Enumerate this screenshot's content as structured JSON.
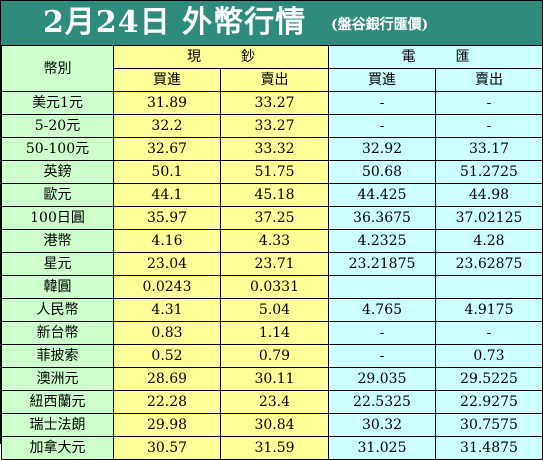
{
  "header": {
    "title": "2月24日 外幣行情",
    "bank": "(盤谷銀行匯價)"
  },
  "table": {
    "currency_label": "幣別",
    "cash_label": "現鈔",
    "wire_label": "電匯",
    "buy_label": "買進",
    "sell_label": "賣出",
    "rows": [
      {
        "currency": "美元1元",
        "cash_buy": "31.89",
        "cash_sell": "33.27",
        "wire_buy": "-",
        "wire_sell": "-"
      },
      {
        "currency": "5-20元",
        "cash_buy": "32.2",
        "cash_sell": "33.27",
        "wire_buy": "-",
        "wire_sell": "-"
      },
      {
        "currency": "50-100元",
        "cash_buy": "32.67",
        "cash_sell": "33.32",
        "wire_buy": "32.92",
        "wire_sell": "33.17"
      },
      {
        "currency": "英鎊",
        "cash_buy": "50.1",
        "cash_sell": "51.75",
        "wire_buy": "50.68",
        "wire_sell": "51.2725"
      },
      {
        "currency": "歐元",
        "cash_buy": "44.1",
        "cash_sell": "45.18",
        "wire_buy": "44.425",
        "wire_sell": "44.98"
      },
      {
        "currency": "100日圓",
        "cash_buy": "35.97",
        "cash_sell": "37.25",
        "wire_buy": "36.3675",
        "wire_sell": "37.02125"
      },
      {
        "currency": "港幣",
        "cash_buy": "4.16",
        "cash_sell": "4.33",
        "wire_buy": "4.2325",
        "wire_sell": "4.28"
      },
      {
        "currency": "星元",
        "cash_buy": "23.04",
        "cash_sell": "23.71",
        "wire_buy": "23.21875",
        "wire_sell": "23.62875"
      },
      {
        "currency": "韓圓",
        "cash_buy": "0.0243",
        "cash_sell": "0.0331",
        "wire_buy": "",
        "wire_sell": ""
      },
      {
        "currency": "人民幣",
        "cash_buy": "4.31",
        "cash_sell": "5.04",
        "wire_buy": "4.765",
        "wire_sell": "4.9175"
      },
      {
        "currency": "新台幣",
        "cash_buy": "0.83",
        "cash_sell": "1.14",
        "wire_buy": "-",
        "wire_sell": "-"
      },
      {
        "currency": "菲披索",
        "cash_buy": "0.52",
        "cash_sell": "0.79",
        "wire_buy": "-",
        "wire_sell": "0.73"
      },
      {
        "currency": "澳洲元",
        "cash_buy": "28.69",
        "cash_sell": "30.11",
        "wire_buy": "29.035",
        "wire_sell": "29.5225"
      },
      {
        "currency": "紐西蘭元",
        "cash_buy": "22.28",
        "cash_sell": "23.4",
        "wire_buy": "22.5325",
        "wire_sell": "22.9275"
      },
      {
        "currency": "瑞士法朗",
        "cash_buy": "29.98",
        "cash_sell": "30.84",
        "wire_buy": "30.32",
        "wire_sell": "30.7575"
      },
      {
        "currency": "加拿大元",
        "cash_buy": "30.57",
        "cash_sell": "31.59",
        "wire_buy": "31.025",
        "wire_sell": "31.4875"
      }
    ]
  },
  "colors": {
    "title_bg": "#2f8c7c",
    "currency_col": "#ccffcc",
    "cash_cols": "#ffff99",
    "wire_cols": "#ccffff"
  }
}
